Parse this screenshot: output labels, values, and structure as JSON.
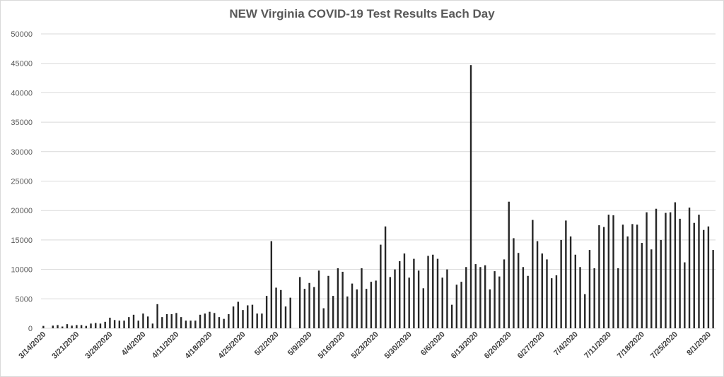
{
  "chart_data": {
    "type": "bar",
    "title": "NEW Virginia COVID-19 Test Results Each Day",
    "xlabel": "",
    "ylabel": "",
    "ylim": [
      0,
      50000
    ],
    "yticks": [
      "0",
      "5000",
      "10000",
      "15000",
      "20000",
      "25000",
      "30000",
      "35000",
      "40000",
      "45000",
      "50000"
    ],
    "grid": true,
    "legend": "none",
    "bar_color": "#262626",
    "grid_color": "#d9d9d9",
    "start_date": "3/14/2020",
    "tick_labels": [
      "3/14/2020",
      "3/21/2020",
      "3/28/2020",
      "4/4/2020",
      "4/11/2020",
      "4/18/2020",
      "4/25/2020",
      "5/2/2020",
      "5/9/2020",
      "5/16/2020",
      "5/23/2020",
      "5/30/2020",
      "6/6/2020",
      "6/13/2020",
      "6/20/2020",
      "6/27/2020",
      "7/4/2020",
      "7/11/2020",
      "7/18/2020",
      "7/25/2020",
      "8/1/2020"
    ],
    "categories": [
      "3/14/2020",
      "3/15/2020",
      "3/16/2020",
      "3/17/2020",
      "3/18/2020",
      "3/19/2020",
      "3/20/2020",
      "3/21/2020",
      "3/22/2020",
      "3/23/2020",
      "3/24/2020",
      "3/25/2020",
      "3/26/2020",
      "3/27/2020",
      "3/28/2020",
      "3/29/2020",
      "3/30/2020",
      "3/31/2020",
      "4/1/2020",
      "4/2/2020",
      "4/3/2020",
      "4/4/2020",
      "4/5/2020",
      "4/6/2020",
      "4/7/2020",
      "4/8/2020",
      "4/9/2020",
      "4/10/2020",
      "4/11/2020",
      "4/12/2020",
      "4/13/2020",
      "4/14/2020",
      "4/15/2020",
      "4/16/2020",
      "4/17/2020",
      "4/18/2020",
      "4/19/2020",
      "4/20/2020",
      "4/21/2020",
      "4/22/2020",
      "4/23/2020",
      "4/24/2020",
      "4/25/2020",
      "4/26/2020",
      "4/27/2020",
      "4/28/2020",
      "4/29/2020",
      "4/30/2020",
      "5/1/2020",
      "5/2/2020",
      "5/3/2020",
      "5/4/2020",
      "5/5/2020",
      "5/6/2020",
      "5/7/2020",
      "5/8/2020",
      "5/9/2020",
      "5/10/2020",
      "5/11/2020",
      "5/12/2020",
      "5/13/2020",
      "5/14/2020",
      "5/15/2020",
      "5/16/2020",
      "5/17/2020",
      "5/18/2020",
      "5/19/2020",
      "5/20/2020",
      "5/21/2020",
      "5/22/2020",
      "5/23/2020",
      "5/24/2020",
      "5/25/2020",
      "5/26/2020",
      "5/27/2020",
      "5/28/2020",
      "5/29/2020",
      "5/30/2020",
      "5/31/2020",
      "6/1/2020",
      "6/2/2020",
      "6/3/2020",
      "6/4/2020",
      "6/5/2020",
      "6/6/2020",
      "6/7/2020",
      "6/8/2020",
      "6/9/2020",
      "6/10/2020",
      "6/11/2020",
      "6/12/2020",
      "6/13/2020",
      "6/14/2020",
      "6/15/2020",
      "6/16/2020",
      "6/17/2020",
      "6/18/2020",
      "6/19/2020",
      "6/20/2020",
      "6/21/2020",
      "6/22/2020",
      "6/23/2020",
      "6/24/2020",
      "6/25/2020",
      "6/26/2020",
      "6/27/2020",
      "6/28/2020",
      "6/29/2020",
      "6/30/2020",
      "7/1/2020",
      "7/2/2020",
      "7/3/2020",
      "7/4/2020",
      "7/5/2020",
      "7/6/2020",
      "7/7/2020",
      "7/8/2020",
      "7/9/2020",
      "7/10/2020",
      "7/11/2020",
      "7/12/2020",
      "7/13/2020",
      "7/14/2020",
      "7/15/2020",
      "7/16/2020",
      "7/17/2020",
      "7/18/2020",
      "7/19/2020",
      "7/20/2020",
      "7/21/2020",
      "7/22/2020",
      "7/23/2020",
      "7/24/2020",
      "7/25/2020",
      "7/26/2020",
      "7/27/2020",
      "7/28/2020",
      "7/29/2020",
      "7/30/2020",
      "7/31/2020",
      "8/1/2020",
      "8/2/2020"
    ],
    "values": [
      400,
      0,
      450,
      550,
      300,
      700,
      450,
      550,
      550,
      400,
      800,
      900,
      800,
      1100,
      1800,
      1400,
      1300,
      1300,
      1900,
      2300,
      1300,
      2500,
      2000,
      800,
      4100,
      1900,
      2400,
      2400,
      2600,
      1900,
      1300,
      1300,
      1300,
      2300,
      2500,
      2800,
      2600,
      1900,
      1600,
      2400,
      3700,
      4500,
      3100,
      3900,
      4000,
      2500,
      2500,
      5500,
      14800,
      6900,
      6500,
      3700,
      5200,
      0,
      8700,
      6700,
      7700,
      7000,
      9800,
      3400,
      8900,
      5500,
      10200,
      9600,
      5400,
      7600,
      6600,
      10200,
      6700,
      7900,
      8100,
      14200,
      17300,
      8700,
      10000,
      11400,
      12700,
      8600,
      11800,
      9800,
      6800,
      12300,
      12500,
      11800,
      8600,
      10000,
      4000,
      7400,
      7900,
      10400,
      44700,
      10900,
      10400,
      10700,
      6600,
      9700,
      8800,
      11700,
      21500,
      15300,
      12800,
      10400,
      8900,
      18400,
      14800,
      12700,
      11700,
      8500,
      9000,
      15000,
      18300,
      15600,
      12500,
      10400,
      5800,
      13300,
      10200,
      17500,
      17200,
      19300,
      19200,
      10200,
      17600,
      15600,
      17700,
      17600,
      14500,
      19700,
      13400,
      20300,
      15000,
      19600,
      19700,
      21400,
      18600,
      11200,
      20500,
      17900,
      19300,
      16700,
      17300,
      13300
    ]
  }
}
